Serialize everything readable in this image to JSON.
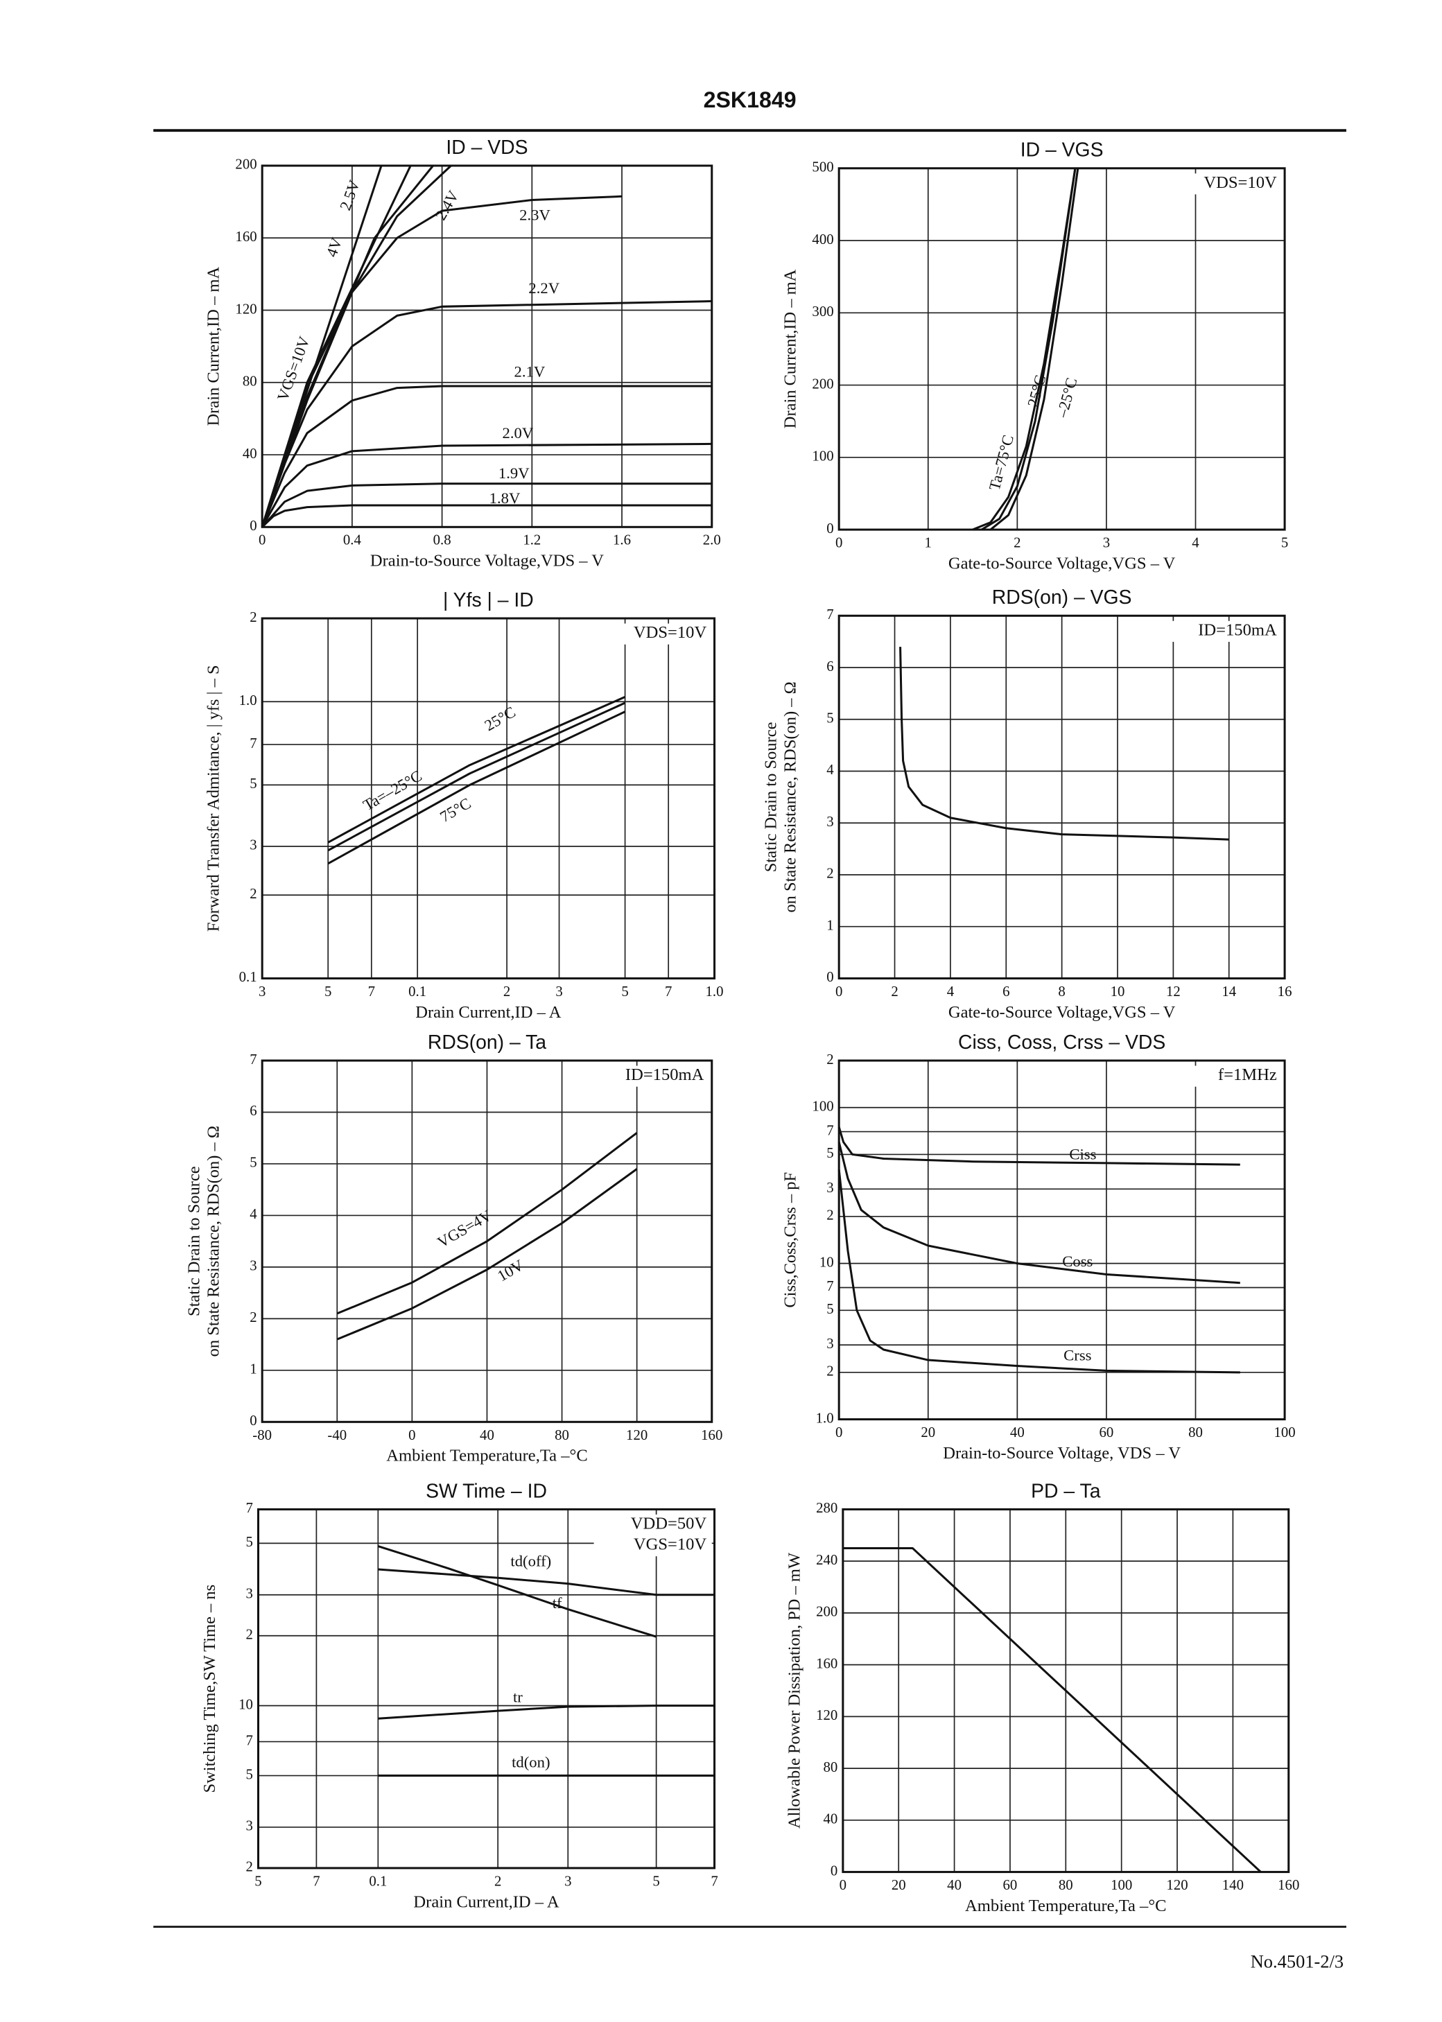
{
  "header": "2SK1849",
  "footer": "No.4501-2/3",
  "chart_data": [
    {
      "type": "line",
      "title": "ID – VDS",
      "xlabel": "Drain-to-Source Voltage,VDS – V",
      "ylabel": [
        "Drain Current,ID – mA"
      ],
      "xlim": [
        0,
        2
      ],
      "ylim": [
        0,
        200
      ],
      "xticks": [
        0,
        0.4,
        0.8,
        1.2,
        1.6,
        {
          "value": 2,
          "label": "2.0"
        }
      ],
      "yticks": [
        0,
        40,
        80,
        120,
        160,
        200
      ],
      "grid": true,
      "series": [
        {
          "name": "VGS=10V",
          "color": "#111111",
          "x": [
            0,
            0.53
          ],
          "values": [
            0,
            200
          ]
        },
        {
          "name": "4V",
          "color": "#111111",
          "x": [
            0,
            0.2,
            0.66
          ],
          "values": [
            0,
            80,
            200
          ]
        },
        {
          "name": "2.5V",
          "color": "#111111",
          "x": [
            0,
            0.2,
            0.5,
            0.76
          ],
          "values": [
            0,
            72,
            160,
            200
          ]
        },
        {
          "name": "2.4V",
          "color": "#111111",
          "x": [
            0,
            0.2,
            0.4,
            0.6,
            0.84
          ],
          "values": [
            0,
            70,
            130,
            172,
            200
          ]
        },
        {
          "name": "2.3V",
          "color": "#111111",
          "x": [
            0,
            0.1,
            0.2,
            0.4,
            0.6,
            0.8,
            1.2,
            1.6
          ],
          "values": [
            0,
            40,
            78,
            130,
            160,
            175,
            181,
            183
          ]
        },
        {
          "name": "2.2V",
          "color": "#111111",
          "x": [
            0,
            0.1,
            0.2,
            0.4,
            0.6,
            0.8,
            1.2,
            2.0
          ],
          "values": [
            0,
            35,
            65,
            100,
            117,
            122,
            123,
            125
          ]
        },
        {
          "name": "2.1V",
          "color": "#111111",
          "x": [
            0,
            0.1,
            0.2,
            0.4,
            0.6,
            0.8,
            2.0
          ],
          "values": [
            0,
            30,
            52,
            70,
            77,
            78,
            78
          ]
        },
        {
          "name": "2.0V",
          "color": "#111111",
          "x": [
            0,
            0.1,
            0.2,
            0.4,
            0.8,
            2.0
          ],
          "values": [
            0,
            22,
            34,
            42,
            45,
            46
          ]
        },
        {
          "name": "1.9V",
          "color": "#111111",
          "x": [
            0,
            0.1,
            0.2,
            0.4,
            0.8,
            2.0
          ],
          "values": [
            0,
            14,
            20,
            23,
            24,
            24
          ]
        },
        {
          "name": "1.8V",
          "color": "#111111",
          "x": [
            0,
            0.05,
            0.1,
            0.2,
            0.4,
            2.0
          ],
          "values": [
            0,
            6,
            9,
            11,
            12,
            12
          ]
        }
      ]
    },
    {
      "type": "line",
      "title": "ID – VGS",
      "xlabel": "Gate-to-Source Voltage,VGS – V",
      "ylabel": [
        "Drain Current,ID – mA"
      ],
      "xlim": [
        0,
        5
      ],
      "ylim": [
        0,
        500
      ],
      "xticks": [
        0,
        1,
        2,
        3,
        4,
        5
      ],
      "yticks": [
        0,
        100,
        200,
        300,
        400,
        500
      ],
      "grid": true,
      "annotations": [
        "VDS=10V"
      ],
      "series": [
        {
          "name": "Ta=75°C",
          "color": "#111111",
          "x": [
            1.5,
            1.7,
            1.9,
            2.1,
            2.3,
            2.5,
            2.65
          ],
          "values": [
            0,
            10,
            45,
            115,
            230,
            380,
            500
          ]
        },
        {
          "name": "25°C",
          "color": "#111111",
          "x": [
            1.6,
            1.8,
            2.0,
            2.2,
            2.4,
            2.65
          ],
          "values": [
            0,
            15,
            60,
            150,
            290,
            500
          ]
        },
        {
          "name": "–25°C",
          "color": "#111111",
          "x": [
            1.7,
            1.9,
            2.1,
            2.3,
            2.5,
            2.68
          ],
          "values": [
            0,
            20,
            75,
            180,
            340,
            500
          ]
        }
      ]
    },
    {
      "type": "line",
      "title": "| Yfs | – ID",
      "xlabel": "Drain Current,ID – A",
      "ylabel": [
        "Forward Transfer Admitance, | yfs | – S"
      ],
      "xlog": true,
      "ylog": true,
      "xlim": [
        0.03,
        1
      ],
      "ylim": [
        0.1,
        2
      ],
      "xticks": [
        {
          "value": 0.03,
          "label": "3"
        },
        {
          "value": 0.05,
          "label": "5"
        },
        {
          "value": 0.07,
          "label": "7"
        },
        0.1,
        {
          "value": 0.2,
          "label": "2"
        },
        {
          "value": 0.3,
          "label": "3"
        },
        {
          "value": 0.5,
          "label": "5"
        },
        {
          "value": 0.7,
          "label": "7"
        },
        {
          "value": 1,
          "label": "1.0"
        }
      ],
      "yticks": [
        0.1,
        {
          "value": 0.2,
          "label": "2"
        },
        {
          "value": 0.3,
          "label": "3"
        },
        {
          "value": 0.5,
          "label": "5"
        },
        {
          "value": 0.7,
          "label": "7"
        },
        {
          "value": 1,
          "label": "1.0"
        },
        2
      ],
      "grid": true,
      "annotations": [
        "VDS=10V"
      ],
      "series": [
        {
          "name": "Ta=–25°C",
          "color": "#111111",
          "x": [
            0.05,
            0.15,
            0.5
          ],
          "values": [
            0.31,
            0.59,
            1.04
          ]
        },
        {
          "name": "25°C",
          "color": "#111111",
          "x": [
            0.05,
            0.15,
            0.5
          ],
          "values": [
            0.29,
            0.55,
            0.99
          ]
        },
        {
          "name": "75°C",
          "color": "#111111",
          "x": [
            0.05,
            0.15,
            0.5
          ],
          "values": [
            0.26,
            0.5,
            0.92
          ]
        }
      ]
    },
    {
      "type": "line",
      "title": "RDS(on) – VGS",
      "xlabel": "Gate-to-Source Voltage,VGS – V",
      "ylabel": [
        "Static Drain to Source",
        "on State Resistance, RDS(on) – Ω"
      ],
      "xlim": [
        0,
        16
      ],
      "ylim": [
        0,
        7
      ],
      "xticks": [
        0,
        2,
        4,
        6,
        8,
        10,
        12,
        14,
        16
      ],
      "yticks": [
        0,
        1,
        2,
        3,
        4,
        5,
        6,
        7
      ],
      "grid": true,
      "annotations": [
        "ID=150mA"
      ],
      "series": [
        {
          "color": "#111111",
          "x": [
            2.2,
            2.25,
            2.3,
            2.5,
            3,
            4,
            6,
            8,
            10,
            12,
            14
          ],
          "values": [
            6.4,
            5,
            4.2,
            3.7,
            3.35,
            3.1,
            2.9,
            2.78,
            2.75,
            2.72,
            2.68
          ]
        }
      ]
    },
    {
      "type": "line",
      "title": "RDS(on) – Ta",
      "xlabel": "Ambient Temperature,Ta –°C",
      "ylabel": [
        "Static Drain to Source",
        "on State Resistance, RDS(on) – Ω"
      ],
      "xlim": [
        -80,
        160
      ],
      "ylim": [
        0,
        7
      ],
      "xticks": [
        -80,
        -40,
        0,
        40,
        80,
        120,
        160
      ],
      "yticks": [
        0,
        1,
        2,
        3,
        4,
        5,
        6,
        7
      ],
      "grid": true,
      "annotations": [
        "ID=150mA"
      ],
      "series": [
        {
          "name": "VGS=4V",
          "color": "#111111",
          "x": [
            -40,
            0,
            40,
            80,
            120
          ],
          "values": [
            2.1,
            2.7,
            3.5,
            4.5,
            5.6
          ]
        },
        {
          "name": "10V",
          "color": "#111111",
          "x": [
            -40,
            0,
            40,
            80,
            120
          ],
          "values": [
            1.6,
            2.2,
            2.95,
            3.85,
            4.9
          ]
        }
      ]
    },
    {
      "type": "line",
      "title": "Ciss, Coss, Crss – VDS",
      "xlabel": "Drain-to-Source Voltage, VDS – V",
      "ylabel": [
        "Ciss,Coss,Crss – pF"
      ],
      "ylog": true,
      "xlim": [
        0,
        100
      ],
      "ylim": [
        1,
        200
      ],
      "xticks": [
        0,
        20,
        40,
        60,
        80,
        100
      ],
      "yticks": [
        {
          "value": 1,
          "label": "1.0"
        },
        2,
        3,
        5,
        7,
        10,
        {
          "value": 20,
          "label": "2"
        },
        {
          "value": 30,
          "label": "3"
        },
        {
          "value": 50,
          "label": "5"
        },
        {
          "value": 70,
          "label": "7"
        },
        100,
        {
          "value": 200,
          "label": "2"
        }
      ],
      "grid": true,
      "annotations": [
        "f=1MHz"
      ],
      "series": [
        {
          "name": "Ciss",
          "color": "#111111",
          "x": [
            0,
            1,
            3,
            10,
            30,
            60,
            90
          ],
          "values": [
            75,
            60,
            50,
            47,
            45,
            44,
            43
          ]
        },
        {
          "name": "Coss",
          "color": "#111111",
          "x": [
            0,
            2,
            5,
            10,
            20,
            40,
            60,
            90
          ],
          "values": [
            60,
            35,
            22,
            17,
            13,
            10,
            8.5,
            7.5
          ]
        },
        {
          "name": "Crss",
          "color": "#111111",
          "x": [
            0,
            2,
            4,
            7,
            10,
            20,
            40,
            60,
            90
          ],
          "values": [
            40,
            12,
            5,
            3.2,
            2.8,
            2.4,
            2.2,
            2.05,
            2
          ]
        }
      ]
    },
    {
      "type": "line",
      "title": "SW Time – ID",
      "xlabel": "Drain Current,ID – A",
      "ylabel": [
        "Switching Time,SW Time – ns"
      ],
      "xlog": true,
      "ylog": true,
      "xlim": [
        0.05,
        0.7
      ],
      "ylim": [
        2,
        70
      ],
      "xticks": [
        {
          "value": 0.05,
          "label": "5"
        },
        {
          "value": 0.07,
          "label": "7"
        },
        0.1,
        {
          "value": 0.2,
          "label": "2"
        },
        {
          "value": 0.3,
          "label": "3"
        },
        {
          "value": 0.5,
          "label": "5"
        },
        {
          "value": 0.7,
          "label": "7"
        }
      ],
      "yticks": [
        2,
        3,
        5,
        7,
        10,
        {
          "value": 20,
          "label": "2"
        },
        {
          "value": 30,
          "label": "3"
        },
        {
          "value": 50,
          "label": "5"
        },
        {
          "value": 70,
          "label": "7"
        }
      ],
      "grid": true,
      "annotations": [
        "VDD=50V",
        "VGS=10V"
      ],
      "series": [
        {
          "name": "td(off)",
          "color": "#111111",
          "x": [
            0.1,
            0.2,
            0.3,
            0.5,
            0.7
          ],
          "values": [
            38.6,
            35.5,
            33.5,
            30,
            30
          ]
        },
        {
          "name": "tf",
          "color": "#111111",
          "x": [
            0.1,
            0.15,
            0.2,
            0.3,
            0.5
          ],
          "values": [
            48.6,
            39,
            33,
            26,
            19.8
          ]
        },
        {
          "name": "tr",
          "color": "#111111",
          "x": [
            0.1,
            0.2,
            0.3,
            0.5,
            0.7
          ],
          "values": [
            8.8,
            9.5,
            9.9,
            10,
            10
          ]
        },
        {
          "name": "td(on)",
          "color": "#111111",
          "x": [
            0.1,
            0.7
          ],
          "values": [
            5,
            5
          ]
        }
      ]
    },
    {
      "type": "line",
      "title": "PD – Ta",
      "xlabel": "Ambient Temperature,Ta –°C",
      "ylabel": [
        "Allowable Power Dissipation, PD – mW"
      ],
      "xlim": [
        0,
        160
      ],
      "ylim": [
        0,
        280
      ],
      "xticks": [
        0,
        20,
        40,
        60,
        80,
        100,
        120,
        140,
        160
      ],
      "yticks": [
        0,
        40,
        80,
        120,
        160,
        200,
        240,
        280
      ],
      "grid": true,
      "series": [
        {
          "color": "#111111",
          "x": [
            0,
            25,
            150
          ],
          "values": [
            250,
            250,
            0
          ]
        }
      ]
    }
  ]
}
